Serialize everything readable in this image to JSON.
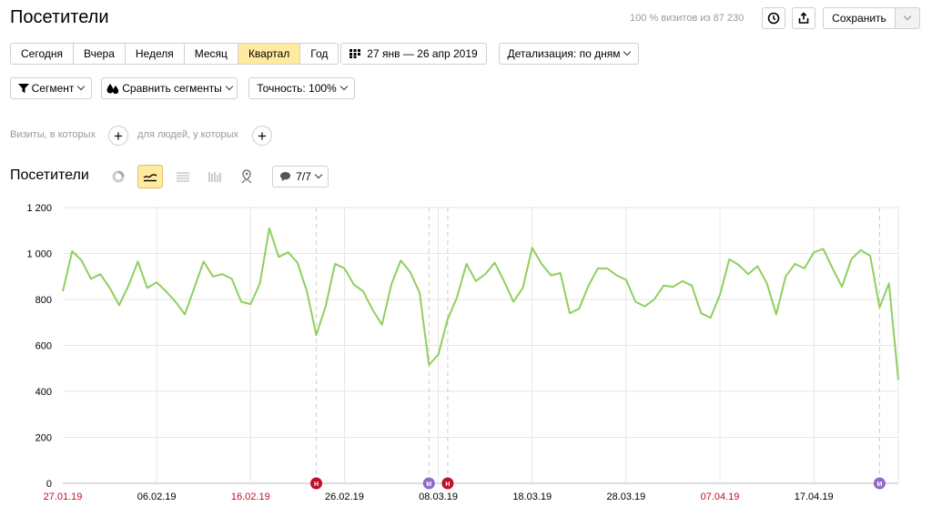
{
  "header": {
    "title": "Посетители",
    "share_text": "100 % визитов из 87 230",
    "save_label": "Сохранить"
  },
  "periods": [
    {
      "label": "Сегодня",
      "active": false
    },
    {
      "label": "Вчера",
      "active": false
    },
    {
      "label": "Неделя",
      "active": false
    },
    {
      "label": "Месяц",
      "active": false
    },
    {
      "label": "Квартал",
      "active": true
    },
    {
      "label": "Год",
      "active": false
    }
  ],
  "date_range": "27 янв — 26 апр 2019",
  "detail": "Детализация: по дням",
  "filters": {
    "segment": "Сегмент",
    "compare": "Сравнить сегменты",
    "accuracy": "Точность: 100%"
  },
  "conditions": {
    "visits_label": "Визиты, в которых",
    "people_label": "для людей, у которых"
  },
  "chart_section": {
    "title": "Посетители",
    "notes_label": "7/7"
  },
  "colors": {
    "line": "#8fcf5f",
    "grid": "#e6e6e6",
    "holiday": "#c0102a",
    "marker_holiday": "#c0102a",
    "marker_other": "#8e6bc8",
    "accent": "#ffeba0"
  },
  "chart_data": {
    "type": "line",
    "ylim": [
      0,
      1200
    ],
    "yticks": [
      "0",
      "200",
      "400",
      "600",
      "800",
      "1 000",
      "1 200"
    ],
    "xtick_labels": [
      {
        "label": "27.01.19",
        "index": 0,
        "holiday": true
      },
      {
        "label": "06.02.19",
        "index": 10,
        "holiday": false
      },
      {
        "label": "16.02.19",
        "index": 20,
        "holiday": true
      },
      {
        "label": "26.02.19",
        "index": 30,
        "holiday": false
      },
      {
        "label": "08.03.19",
        "index": 40,
        "holiday": false
      },
      {
        "label": "18.03.19",
        "index": 50,
        "holiday": false
      },
      {
        "label": "28.03.19",
        "index": 60,
        "holiday": false
      },
      {
        "label": "07.04.19",
        "index": 70,
        "holiday": true
      },
      {
        "label": "17.04.19",
        "index": 80,
        "holiday": false
      }
    ],
    "values": [
      835,
      1010,
      970,
      890,
      910,
      850,
      775,
      860,
      965,
      850,
      875,
      835,
      790,
      735,
      850,
      965,
      900,
      910,
      890,
      790,
      780,
      870,
      1110,
      985,
      1005,
      960,
      835,
      645,
      770,
      955,
      935,
      865,
      835,
      755,
      690,
      865,
      970,
      920,
      830,
      515,
      560,
      715,
      810,
      955,
      880,
      910,
      960,
      880,
      790,
      850,
      1025,
      955,
      905,
      915,
      740,
      760,
      860,
      935,
      935,
      905,
      885,
      790,
      770,
      800,
      860,
      855,
      880,
      860,
      740,
      720,
      820,
      975,
      950,
      910,
      945,
      870,
      735,
      900,
      955,
      935,
      1005,
      1020,
      935,
      855,
      975,
      1015,
      990,
      765,
      870,
      450
    ],
    "event_markers": [
      {
        "index": 27,
        "kind": "holiday",
        "letter": "Н"
      },
      {
        "index": 39,
        "kind": "other",
        "letter": "М"
      },
      {
        "index": 41,
        "kind": "holiday",
        "letter": "Н"
      },
      {
        "index": 87,
        "kind": "other",
        "letter": "М"
      }
    ],
    "grid": true
  }
}
